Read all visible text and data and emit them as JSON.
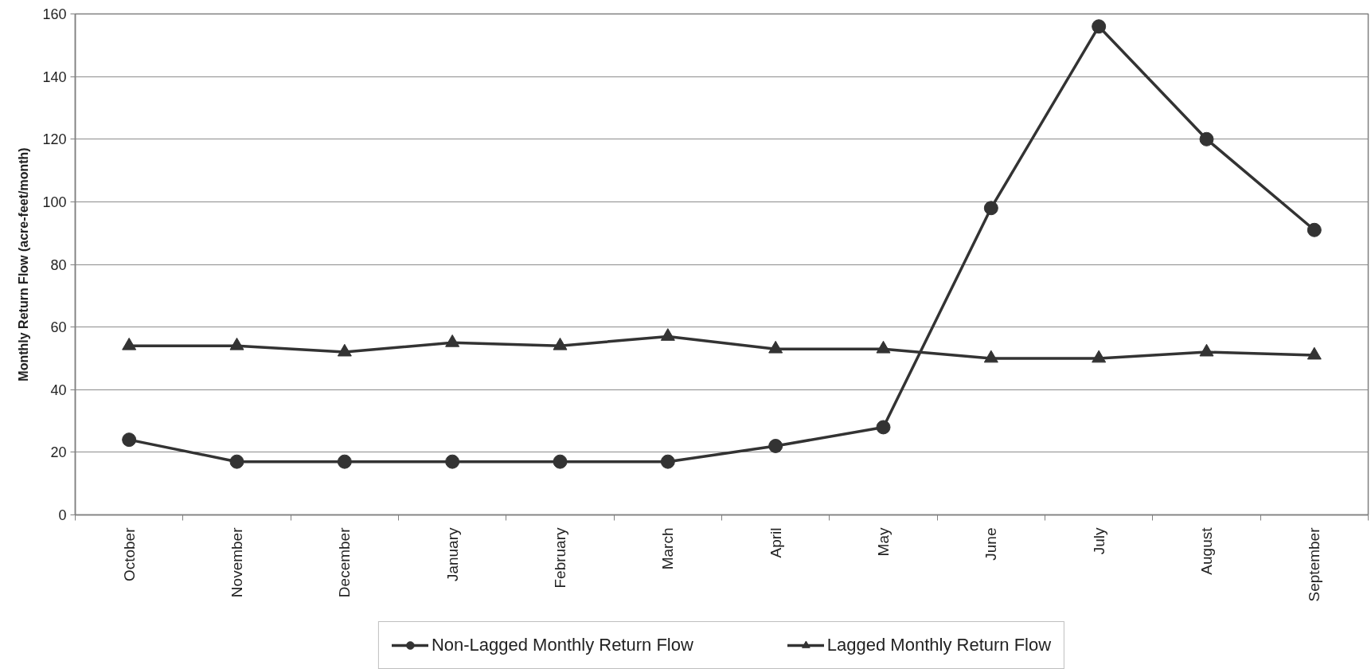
{
  "chart_data": {
    "type": "line",
    "ylabel": "Monthly Return Flow (acre-feet/month)",
    "categories": [
      "October",
      "November",
      "December",
      "January",
      "February",
      "March",
      "April",
      "May",
      "June",
      "July",
      "August",
      "September"
    ],
    "series": [
      {
        "name": "Non-Lagged Monthly Return Flow",
        "color": "#333333",
        "marker": "circle",
        "values": [
          24,
          17,
          17,
          17,
          17,
          17,
          22,
          28,
          98,
          156,
          120,
          91
        ]
      },
      {
        "name": "Lagged Monthly Return Flow",
        "color": "#333333",
        "marker": "triangle",
        "values": [
          54,
          54,
          52,
          55,
          54,
          57,
          53,
          53,
          50,
          50,
          52,
          51
        ]
      }
    ],
    "ylim": [
      0,
      160
    ],
    "yticks": [
      0,
      20,
      40,
      60,
      80,
      100,
      120,
      140,
      160
    ],
    "grid": "y",
    "legend": "bottom",
    "line_style": "solid"
  }
}
